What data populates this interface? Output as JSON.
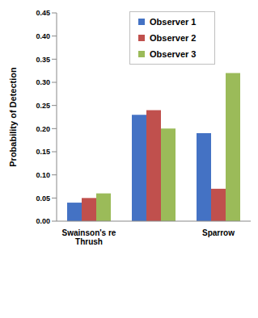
{
  "chart_data": {
    "type": "bar",
    "y_label": "Probability of Detection",
    "categories": [
      "Swainson's re\nThrush",
      null,
      "Sparrow"
    ],
    "series": [
      {
        "name": "Observer 1",
        "color": "#4472c4",
        "values": [
          0.04,
          0.23,
          0.19
        ]
      },
      {
        "name": "Observer 2",
        "color": "#c0504d",
        "values": [
          0.05,
          0.24,
          0.07
        ]
      },
      {
        "name": "Observer 3",
        "color": "#9bbb59",
        "values": [
          0.06,
          0.2,
          0.32
        ]
      }
    ],
    "ylim": [
      0,
      0.45
    ],
    "yticks": [
      {
        "value": 0,
        "label": "0.00"
      },
      {
        "value": 0.05,
        "label": "0.05"
      },
      {
        "value": 0.1,
        "label": "0.10"
      },
      {
        "value": 0.15,
        "label": "0.15"
      },
      {
        "value": 0.2,
        "label": "0.20"
      },
      {
        "value": 0.25,
        "label": "0.25"
      },
      {
        "value": 0.3,
        "label": "0.30"
      },
      {
        "value": 0.35,
        "label": "0.35"
      },
      {
        "value": 0.4,
        "label": "0.40"
      },
      {
        "value": 0.45,
        "label": "0.45"
      }
    ],
    "grid": false,
    "legend": "upper right"
  }
}
